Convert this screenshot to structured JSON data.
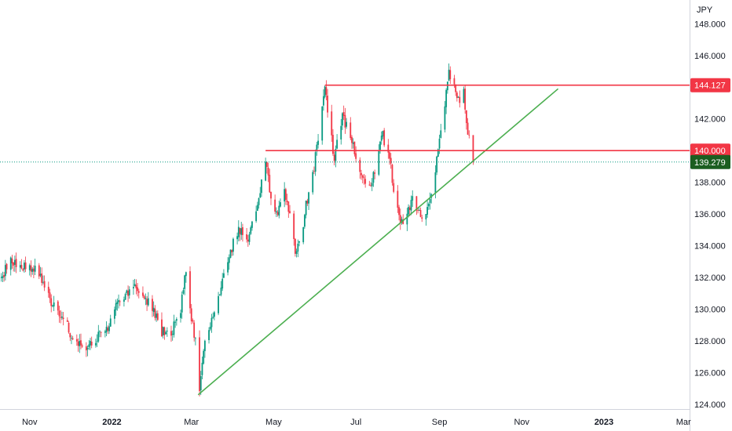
{
  "chart_data": {
    "type": "candlestick",
    "currency_label": "JPY",
    "ylim": [
      123.7,
      149.5
    ],
    "y_ticks": [
      "124.000",
      "126.000",
      "128.000",
      "130.000",
      "132.000",
      "134.000",
      "136.000",
      "138.000",
      "140.000",
      "142.000",
      "144.000",
      "146.000",
      "148.000"
    ],
    "x_ticks": [
      {
        "label": "Nov",
        "bold": false,
        "date": "2021-11-01"
      },
      {
        "label": "2022",
        "bold": true,
        "date": "2022-01-01"
      },
      {
        "label": "Mar",
        "bold": false,
        "date": "2022-03-01"
      },
      {
        "label": "May",
        "bold": false,
        "date": "2022-05-01"
      },
      {
        "label": "Jul",
        "bold": false,
        "date": "2022-07-01"
      },
      {
        "label": "Sep",
        "bold": false,
        "date": "2022-09-01"
      },
      {
        "label": "Nov",
        "bold": false,
        "date": "2022-11-01"
      },
      {
        "label": "2023",
        "bold": true,
        "date": "2023-01-01"
      },
      {
        "label": "Mar",
        "bold": false,
        "date": "2023-03-01"
      }
    ],
    "x_range": [
      "2021-10-10",
      "2023-04-06"
    ],
    "resistance_lines": [
      {
        "label": "144.127",
        "value": 144.127,
        "start": "2022-06-08",
        "color": "#f23645"
      },
      {
        "label": "140.000",
        "value": 140.0,
        "start": "2022-04-25",
        "color": "#f23645"
      }
    ],
    "trend_line": {
      "start": [
        "2022-03-06",
        124.6
      ],
      "end": [
        "2022-11-28",
        143.9
      ],
      "color": "#4caf50"
    },
    "last_price": {
      "label": "139.279",
      "value": 139.279,
      "color": "#1b5e20"
    },
    "price_path": [
      [
        "2021-10-10",
        131.8
      ],
      [
        "2021-10-18",
        133.1
      ],
      [
        "2021-10-24",
        132.6
      ],
      [
        "2021-11-01",
        132.8
      ],
      [
        "2021-11-08",
        132.2
      ],
      [
        "2021-11-15",
        130.8
      ],
      [
        "2021-11-22",
        129.6
      ],
      [
        "2021-11-29",
        128.9
      ],
      [
        "2021-12-06",
        127.7
      ],
      [
        "2021-12-12",
        127.6
      ],
      [
        "2021-12-20",
        128.2
      ],
      [
        "2021-12-27",
        128.5
      ],
      [
        "2022-01-03",
        130.1
      ],
      [
        "2022-01-10",
        130.6
      ],
      [
        "2022-01-17",
        131.5
      ],
      [
        "2022-01-24",
        131.0
      ],
      [
        "2022-01-31",
        130.0
      ],
      [
        "2022-02-07",
        128.6
      ],
      [
        "2022-02-14",
        128.5
      ],
      [
        "2022-02-21",
        130.0
      ],
      [
        "2022-02-25",
        132.4
      ],
      [
        "2022-03-01",
        129.5
      ],
      [
        "2022-03-04",
        128.0
      ],
      [
        "2022-03-07",
        125.0
      ],
      [
        "2022-03-10",
        127.6
      ],
      [
        "2022-03-16",
        129.5
      ],
      [
        "2022-03-23",
        131.2
      ],
      [
        "2022-03-29",
        133.5
      ],
      [
        "2022-04-05",
        135.0
      ],
      [
        "2022-04-12",
        134.5
      ],
      [
        "2022-04-18",
        136.0
      ],
      [
        "2022-04-22",
        138.0
      ],
      [
        "2022-04-25",
        139.6
      ],
      [
        "2022-04-29",
        137.0
      ],
      [
        "2022-05-04",
        136.0
      ],
      [
        "2022-05-09",
        137.3
      ],
      [
        "2022-05-13",
        136.2
      ],
      [
        "2022-05-17",
        133.5
      ],
      [
        "2022-05-21",
        134.2
      ],
      [
        "2022-05-25",
        136.5
      ],
      [
        "2022-05-31",
        139.0
      ],
      [
        "2022-06-04",
        141.5
      ],
      [
        "2022-06-08",
        143.9
      ],
      [
        "2022-06-12",
        141.2
      ],
      [
        "2022-06-15",
        139.5
      ],
      [
        "2022-06-21",
        142.2
      ],
      [
        "2022-06-27",
        141.0
      ],
      [
        "2022-07-03",
        139.2
      ],
      [
        "2022-07-10",
        137.5
      ],
      [
        "2022-07-16",
        139.0
      ],
      [
        "2022-07-20",
        141.2
      ],
      [
        "2022-07-26",
        139.5
      ],
      [
        "2022-07-30",
        137.0
      ],
      [
        "2022-08-03",
        135.3
      ],
      [
        "2022-08-08",
        136.2
      ],
      [
        "2022-08-12",
        136.8
      ],
      [
        "2022-08-18",
        136.0
      ],
      [
        "2022-08-22",
        135.8
      ],
      [
        "2022-08-26",
        137.2
      ],
      [
        "2022-08-31",
        140.0
      ],
      [
        "2022-09-05",
        143.0
      ],
      [
        "2022-09-08",
        144.8
      ],
      [
        "2022-09-12",
        144.0
      ],
      [
        "2022-09-15",
        143.2
      ],
      [
        "2022-09-19",
        143.6
      ],
      [
        "2022-09-22",
        141.2
      ],
      [
        "2022-09-26",
        139.28
      ]
    ]
  }
}
